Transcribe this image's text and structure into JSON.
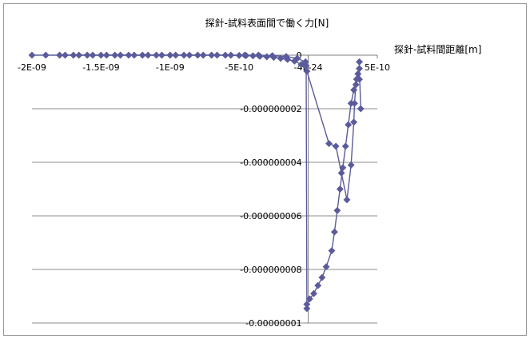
{
  "chart_data": {
    "type": "scatter",
    "title": "探針-試料表面間で働く力[N]",
    "xlabel": "探針-試料間距離[m]",
    "ylabel": "",
    "xlim": [
      -2e-09,
      5e-10
    ],
    "ylim": [
      -1e-08,
      0
    ],
    "x_ticks": [
      {
        "value": -2e-09,
        "label": "-2E-09"
      },
      {
        "value": -1.5e-09,
        "label": "-1.5E-09"
      },
      {
        "value": -1e-09,
        "label": "-1E-09"
      },
      {
        "value": -5e-10,
        "label": "-5E-10"
      },
      {
        "value": 0,
        "label": "-4E-24"
      },
      {
        "value": 5e-10,
        "label": "5E-10"
      }
    ],
    "y_ticks": [
      {
        "value": 0,
        "label": "0"
      },
      {
        "value": -2e-09,
        "label": "-0.000000002"
      },
      {
        "value": -4e-09,
        "label": "-0.000000004"
      },
      {
        "value": -6e-09,
        "label": "-0.000000006"
      },
      {
        "value": -8e-09,
        "label": "-0.000000008"
      },
      {
        "value": -1e-08,
        "label": "-0.00000001"
      }
    ],
    "grid": "horizontal",
    "legend": "none",
    "marker": "diamond",
    "series_color": "#5b5b9b",
    "series": [
      {
        "x": [
          -2e-09,
          -1.9e-09,
          -1.8e-09,
          -1.7e-09,
          -1.6e-09,
          -1.5e-09,
          -1.4e-09,
          -1.3e-09,
          -1.2e-09,
          -1.1e-09,
          -1e-09,
          -9e-10,
          -8e-10,
          -7e-10,
          -6e-10,
          -5e-10,
          -4.5e-10,
          -4e-10,
          -3.5e-10,
          -3e-10,
          -2.5e-10,
          -2e-10,
          -1.5e-10,
          -1e-10,
          -5e-11,
          -1e-11,
          1.5e-10,
          2e-10,
          2.4e-10,
          2.8e-10,
          3.1e-10,
          3.3e-10,
          3.35e-10,
          3.45e-10,
          3.6e-10,
          3.7e-10,
          3.7e-10
        ],
        "y": [
          0,
          0,
          0,
          0,
          0,
          0,
          0,
          0,
          0,
          0,
          0,
          0,
          0,
          0,
          0,
          -1e-11,
          -1.5e-11,
          -2.5e-11,
          -4e-11,
          -6e-11,
          -8e-11,
          -1.2e-10,
          -1.6e-10,
          -2.2e-10,
          -3.5e-10,
          -6e-10,
          -3.3e-09,
          -3.4e-09,
          -4.4e-09,
          -5.4e-09,
          -4.1e-09,
          -2.5e-09,
          -1.8e-09,
          -1.1e-09,
          -7e-10,
          -9e-10,
          -2.5e-10
        ]
      },
      {
        "x": [
          -1.76e-09,
          -1.66e-09,
          -1.56e-09,
          -1.46e-09,
          -1.36e-09,
          -1.26e-09,
          -1.16e-09,
          -1.06e-09,
          -9.6e-10,
          -8.6e-10,
          -7.6e-10,
          -6.6e-10,
          -5.6e-10,
          -4.6e-10,
          -3.6e-10,
          -2.6e-10,
          -1.6e-10,
          -8e-11,
          -2e-11,
          -1.5e-11,
          -1e-11,
          -1e-11,
          1e-11,
          4e-11,
          7e-11,
          1e-10,
          1.3e-10,
          1.7e-10,
          1.9e-10,
          2.1e-10,
          2.3e-10,
          2.5e-10,
          2.7e-10,
          2.9e-10,
          3.1e-10,
          3.3e-10,
          3.5e-10,
          3.7e-10,
          3.8e-10
        ],
        "y": [
          0,
          0,
          0,
          0,
          0,
          0,
          0,
          0,
          0,
          0,
          0,
          0,
          0,
          0,
          0,
          -2e-11,
          -5e-11,
          -1.2e-10,
          -2.5e-10,
          -4e-10,
          -9.46e-09,
          -9.3e-09,
          -9.1e-09,
          -8.9e-09,
          -8.6e-09,
          -8.3e-09,
          -7.9e-09,
          -7.3e-09,
          -6.6e-09,
          -5.8e-09,
          -5e-09,
          -4.2e-09,
          -3.4e-09,
          -2.6e-09,
          -1.8e-09,
          -1.3e-09,
          -9e-10,
          -5e-10,
          -2e-09
        ]
      }
    ]
  }
}
